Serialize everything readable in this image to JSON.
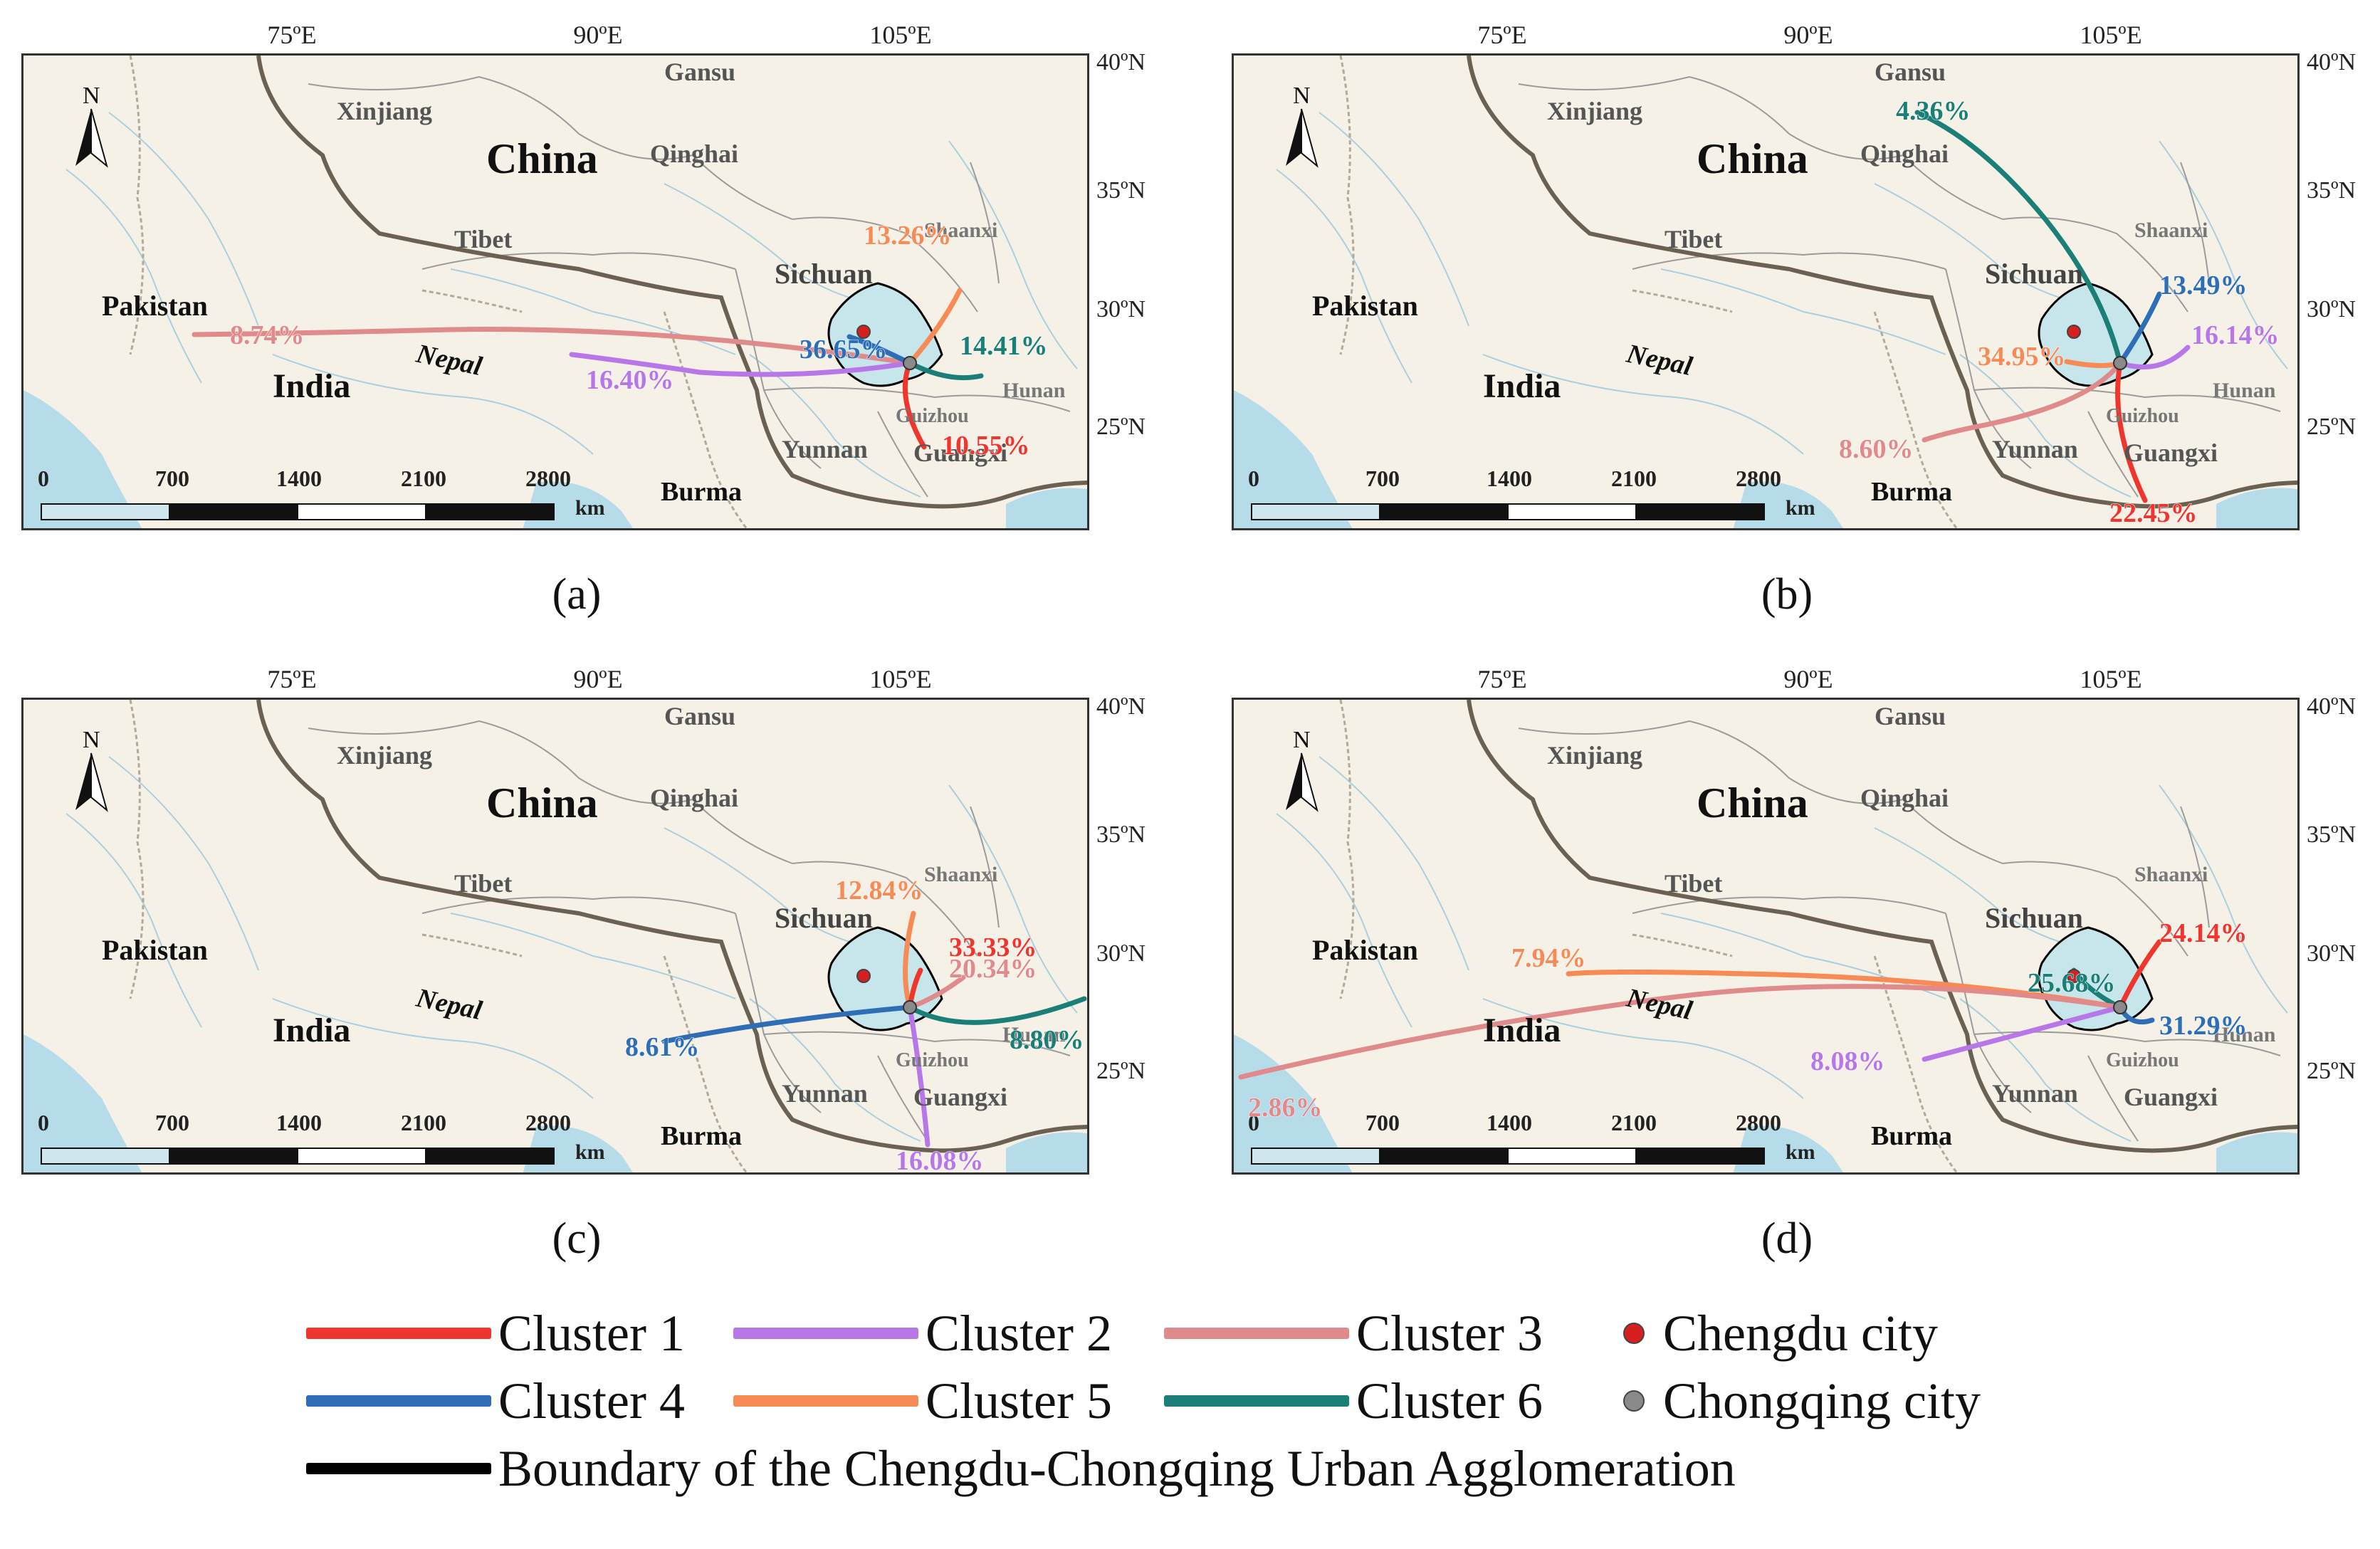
{
  "colors": {
    "cluster1": "#f0352d",
    "cluster2": "#b777e8",
    "cluster3": "#e08a8c",
    "cluster4": "#2e6eb6",
    "cluster5": "#f78a55",
    "cluster6": "#1a7f77",
    "chengdu": "#d61f1f",
    "chongqing": "#8a8a8a",
    "boundary": "#000000",
    "water": "#b6dcea",
    "land": "#f6f1e7",
    "agglomeration": "#c7e6ec"
  },
  "axes": {
    "longitudes": [
      "75ºE",
      "90ºE",
      "105ºE"
    ],
    "latitudes": [
      "40ºN",
      "35ºN",
      "30ºN",
      "25ºN"
    ]
  },
  "map_labels": {
    "china": "China",
    "xinjiang": "Xinjiang",
    "gansu": "Gansu",
    "qinghai": "Qinghai",
    "tibet": "Tibet",
    "shaanxi": "Shaanxi",
    "sichuan": "Sichuan",
    "pakistan": "Pakistan",
    "india": "India",
    "nepal": "Nepal",
    "hunan": "Hunan",
    "guizhou": "Guizhou",
    "yunnan": "Yunnan",
    "guangxi": "Guangxi",
    "burma": "Burma",
    "north": "N",
    "scale_ticks": [
      "0",
      "700",
      "1400",
      "2100",
      "2800"
    ],
    "scale_unit": "km"
  },
  "panels": [
    {
      "caption": "(a)",
      "percentages": {
        "cluster3": "8.74%",
        "cluster2": "16.40%",
        "cluster4": "36.65%",
        "cluster5": "13.26%",
        "cluster6": "14.41%",
        "cluster1": "10.55%"
      }
    },
    {
      "caption": "(b)",
      "percentages": {
        "cluster6": "4.36%",
        "cluster4": "13.49%",
        "cluster2": "16.14%",
        "cluster5": "34.95%",
        "cluster3": "8.60%",
        "cluster1": "22.45%"
      }
    },
    {
      "caption": "(c)",
      "percentages": {
        "cluster5": "12.84%",
        "cluster1": "33.33%",
        "cluster3": "20.34%",
        "cluster6": "8.80%",
        "cluster4": "8.61%",
        "cluster2": "16.08%"
      }
    },
    {
      "caption": "(d)",
      "percentages": {
        "cluster5": "7.94%",
        "cluster1": "24.14%",
        "cluster6": "25.68%",
        "cluster4": "31.29%",
        "cluster3": "2.86%",
        "cluster2": "8.08%"
      }
    }
  ],
  "legend": {
    "cluster1": "Cluster 1",
    "cluster2": "Cluster 2",
    "cluster3": "Cluster 3",
    "cluster4": "Cluster 4",
    "cluster5": "Cluster 5",
    "cluster6": "Cluster 6",
    "chengdu": "Chengdu city",
    "chongqing": "Chongqing city",
    "boundary": "Boundary of the Chengdu-Chongqing Urban Agglomeration"
  }
}
